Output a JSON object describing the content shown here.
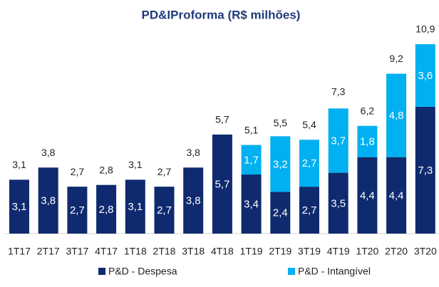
{
  "chart_data": {
    "type": "stacked_bar",
    "title": "PD&IProforma (R$ milhões)",
    "categories": [
      "1T17",
      "2T17",
      "3T17",
      "4T17",
      "1T18",
      "2T18",
      "3T18",
      "4T18",
      "1T19",
      "2T19",
      "3T19",
      "4T19",
      "1T20",
      "2T20",
      "3T20"
    ],
    "series": [
      {
        "name": "P&D - Despesa",
        "color": "#0f2a6e",
        "values": [
          3.1,
          3.8,
          2.7,
          2.8,
          3.1,
          2.7,
          3.8,
          5.7,
          3.4,
          2.4,
          2.7,
          3.5,
          4.4,
          4.4,
          7.3
        ],
        "value_labels": [
          "3,1",
          "3,8",
          "2,7",
          "2,8",
          "3,1",
          "2,7",
          "3,8",
          "5,7",
          "3,4",
          "2,4",
          "2,7",
          "3,5",
          "4,4",
          "4,4",
          "7,3"
        ]
      },
      {
        "name": "P&D - Intangível",
        "color": "#00b0f0",
        "values": [
          null,
          null,
          null,
          null,
          null,
          null,
          null,
          null,
          1.7,
          3.2,
          2.7,
          3.7,
          1.8,
          4.8,
          3.6
        ],
        "value_labels": [
          null,
          null,
          null,
          null,
          null,
          null,
          null,
          null,
          "1,7",
          "3,2",
          "2,7",
          "3,7",
          "1,8",
          "4,8",
          "3,6"
        ]
      }
    ],
    "totals": {
      "values": [
        3.1,
        3.8,
        2.7,
        2.8,
        3.1,
        2.7,
        3.8,
        5.7,
        5.1,
        5.5,
        5.4,
        7.3,
        6.2,
        9.2,
        10.9
      ],
      "value_labels": [
        "3,1",
        "3,8",
        "2,7",
        "2,8",
        "3,1",
        "2,7",
        "3,8",
        "5,7",
        "5,1",
        "5,5",
        "5,4",
        "7,3",
        "6,2",
        "9,2",
        "10,9"
      ]
    },
    "legend": "bottom"
  }
}
